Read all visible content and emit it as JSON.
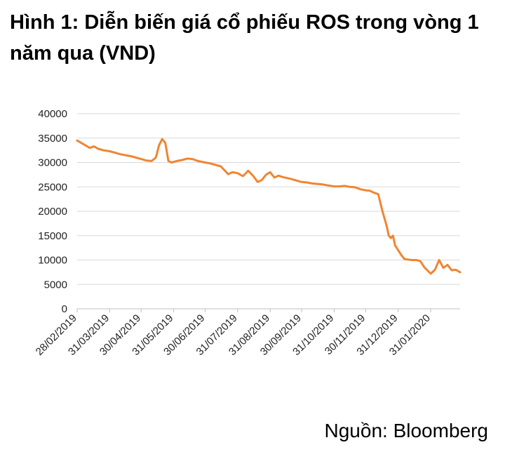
{
  "title": "Hình 1: Diễn biến giá cổ phiếu ROS trong vòng 1 năm qua (VND)",
  "source": "Nguồn: Bloomberg",
  "chart_data": {
    "type": "line",
    "ylim": [
      0,
      40000
    ],
    "yticks": [
      "0",
      "5000",
      "10000",
      "15000",
      "20000",
      "25000",
      "30000",
      "35000",
      "40000"
    ],
    "xticks": [
      "28/02/2019",
      "31/03/2019",
      "30/04/2019",
      "31/05/2019",
      "30/06/2019",
      "31/07/2019",
      "31/08/2019",
      "30/09/2019",
      "31/10/2019",
      "30/11/2019",
      "31/12/2019",
      "31/01/2020"
    ],
    "grid": true,
    "line_color": "#F08532",
    "series": [
      {
        "x": [
          "2019-02-28",
          "2019-03-04",
          "2019-03-08",
          "2019-03-12",
          "2019-03-16",
          "2019-03-20",
          "2019-03-25",
          "2019-03-31",
          "2019-04-05",
          "2019-04-10",
          "2019-04-15",
          "2019-04-20",
          "2019-04-25",
          "2019-04-30",
          "2019-05-05",
          "2019-05-10",
          "2019-05-14",
          "2019-05-17",
          "2019-05-20",
          "2019-05-23",
          "2019-05-26",
          "2019-05-29",
          "2019-06-03",
          "2019-06-08",
          "2019-06-13",
          "2019-06-18",
          "2019-06-23",
          "2019-06-30",
          "2019-07-05",
          "2019-07-10",
          "2019-07-15",
          "2019-07-18",
          "2019-07-22",
          "2019-07-26",
          "2019-07-31",
          "2019-08-05",
          "2019-08-10",
          "2019-08-15",
          "2019-08-19",
          "2019-08-23",
          "2019-08-27",
          "2019-08-31",
          "2019-09-04",
          "2019-09-08",
          "2019-09-12",
          "2019-09-16",
          "2019-09-20",
          "2019-09-25",
          "2019-09-30",
          "2019-10-05",
          "2019-10-10",
          "2019-10-15",
          "2019-10-20",
          "2019-10-25",
          "2019-10-31",
          "2019-11-05",
          "2019-11-10",
          "2019-11-15",
          "2019-11-20",
          "2019-11-25",
          "2019-11-30",
          "2019-12-04",
          "2019-12-08",
          "2019-12-12",
          "2019-12-16",
          "2019-12-20",
          "2019-12-22",
          "2019-12-24",
          "2019-12-26",
          "2019-12-28",
          "2019-12-31",
          "2020-01-03",
          "2020-01-06",
          "2020-01-09",
          "2020-01-13",
          "2020-01-17",
          "2020-01-21",
          "2020-01-25",
          "2020-01-31",
          "2020-02-04",
          "2020-02-08",
          "2020-02-12",
          "2020-02-16",
          "2020-02-20",
          "2020-02-24",
          "2020-02-28"
        ],
        "values": [
          34500,
          34000,
          33500,
          33000,
          33300,
          32800,
          32500,
          32300,
          32000,
          31700,
          31500,
          31300,
          31000,
          30700,
          30400,
          30300,
          31000,
          33500,
          34800,
          34000,
          30300,
          30000,
          30300,
          30500,
          30800,
          30700,
          30300,
          30000,
          29800,
          29500,
          29200,
          28500,
          27600,
          28000,
          27800,
          27200,
          28300,
          27200,
          26000,
          26400,
          27500,
          28000,
          26900,
          27300,
          27000,
          26800,
          26600,
          26300,
          26000,
          25900,
          25700,
          25600,
          25500,
          25300,
          25100,
          25100,
          25200,
          25000,
          24900,
          24500,
          24300,
          24200,
          23800,
          23500,
          20000,
          17000,
          15000,
          14500,
          15000,
          13000,
          12000,
          11000,
          10200,
          10100,
          10000,
          10000,
          9800,
          8500,
          7200,
          8000,
          10000,
          8400,
          9000,
          7900,
          8000,
          7500
        ]
      }
    ]
  }
}
